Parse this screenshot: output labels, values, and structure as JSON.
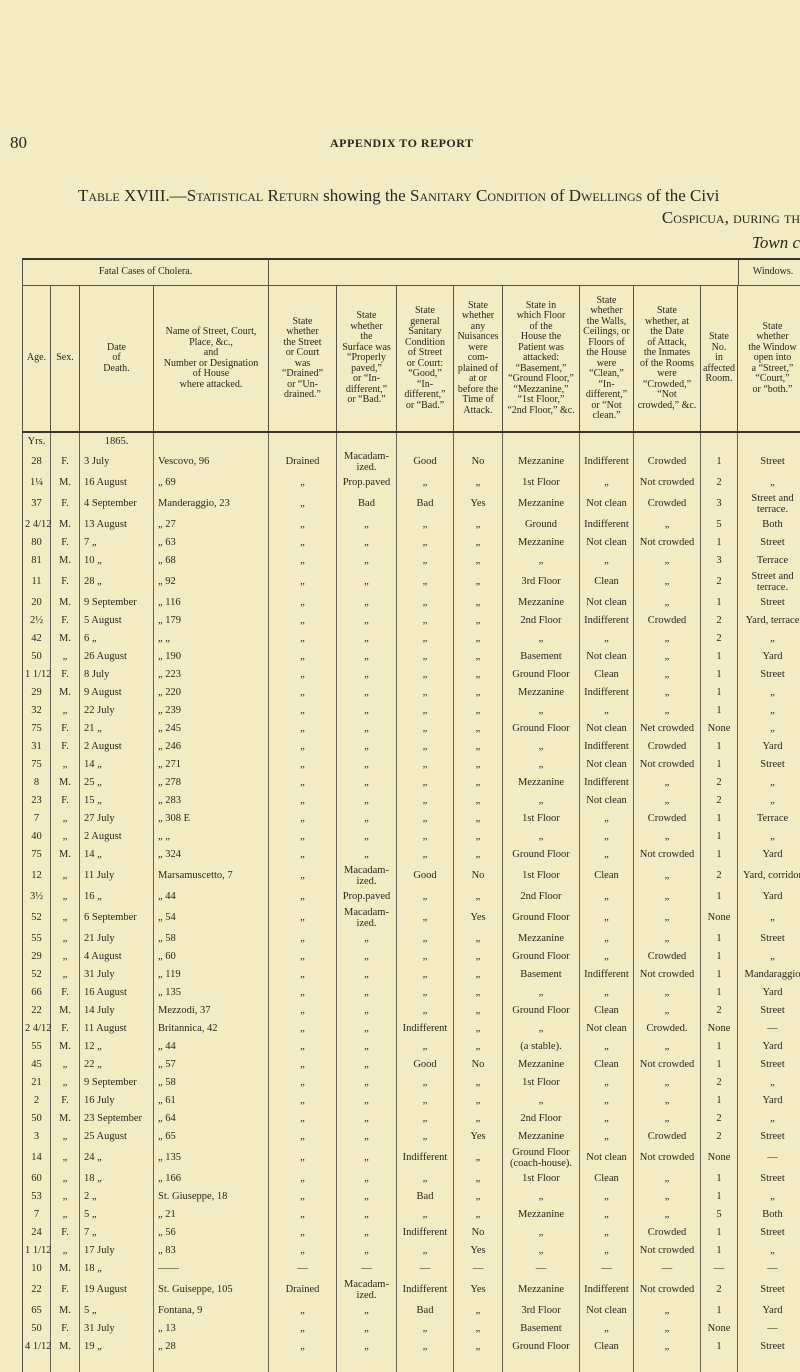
{
  "page_number": "80",
  "running_head": "APPENDIX TO REPORT",
  "title": {
    "label": "Table XVIII.",
    "text_a": "—Statistical Return",
    "text_b": " showing the ",
    "text_c": "Sanitary Condition",
    "text_d": " of ",
    "text_e": "Dwellings",
    "text_f": " of the Civi",
    "line2": "Cospicua, during th",
    "line3": "Town c"
  },
  "table": {
    "group_fatal": "Fatal Cases of Cholera.",
    "group_windows": "Windows.",
    "headers": [
      "Age.",
      "Sex.",
      "Date\nof\nDeath.",
      "Name of Street, Court,\nPlace, &c.,\nand\nNumber or Designation\nof House\nwhere attacked.",
      "State\nwhether\nthe Street\nor Court\nwas\n“Drained”\nor “Un-\ndrained.”",
      "State\nwhether\nthe\nSurface was\n“Properly\npaved,”\nor “In-\ndifferent,”\nor “Bad.”",
      "State\ngeneral\nSanitary\nCondition\nof Street\nor Court:\n“Good,”\n“In-\ndifferent,”\nor “Bad.”",
      "State\nwhether\nany\nNuisances\nwere\ncom-\nplained of\nat or\nbefore the\nTime of\nAttack.",
      "State in\nwhich Floor\nof the\nHouse the\nPatient was\nattacked:\n“Basement,”\n“Ground Floor,”\n“Mezzanine,”\n“1st Floor,”\n“2nd Floor,” &c.",
      "State\nwhether\nthe Walls,\nCeilings, or\nFloors of\nthe House\nwere\n“Clean,”\n“In-\ndifferent,”\nor “Not\nclean.”",
      "State\nwhether, at\nthe Date\nof Attack,\nthe Inmates\nof the Rooms\nwere\n“Crowded,”\n“Not\ncrowded,” &c.",
      "State\nNo.\nin\naffected\nRoom.",
      "State\nwhether\nthe Window\nopen into\na “Street,”\n“Court,”\nor “both.”"
    ],
    "units": {
      "age": "Yrs.",
      "year": "1865."
    },
    "rows": [
      [
        "28",
        "F.",
        "3 July",
        "Vescovo, 96",
        "Drained",
        "Macadam-\nized.",
        "Good",
        "No",
        "Mezzanine",
        "Indifferent",
        "Crowded",
        "1",
        "Street"
      ],
      [
        "1¼",
        "M.",
        "16 August",
        "„  69",
        "„",
        "Prop.paved",
        "„",
        "„",
        "1st Floor",
        "„",
        "Not crowded",
        "2",
        "„"
      ],
      [
        "37",
        "F.",
        "4 September",
        "Manderaggio, 23",
        "„",
        "Bad",
        "Bad",
        "Yes",
        "Mezzanine",
        "Not clean",
        "Crowded",
        "3",
        "Street and\nterrace."
      ],
      [
        "2 4/12",
        "M.",
        "13 August",
        "„  27",
        "„",
        "„",
        "„",
        "„",
        "Ground",
        "Indifferent",
        "„",
        "5",
        "Both"
      ],
      [
        "80",
        "F.",
        "7  „",
        "„  63",
        "„",
        "„",
        "„",
        "„",
        "Mezzanine",
        "Not clean",
        "Not crowded",
        "1",
        "Street"
      ],
      [
        "81",
        "M.",
        "10  „",
        "„  68",
        "„",
        "„",
        "„",
        "„",
        "„",
        "„",
        "„",
        "3",
        "Terrace"
      ],
      [
        "11",
        "F.",
        "28  „",
        "„  92",
        "„",
        "„",
        "„",
        "„",
        "3rd Floor",
        "Clean",
        "„",
        "2",
        "Street and\nterrace."
      ],
      [
        "20",
        "M.",
        "9 September",
        "„  116",
        "„",
        "„",
        "„",
        "„",
        "Mezzanine",
        "Not clean",
        "„",
        "1",
        "Street"
      ],
      [
        "2½",
        "F.",
        "5 August",
        "„  179",
        "„",
        "„",
        "„",
        "„",
        "2nd Floor",
        "Indifferent",
        "Crowded",
        "2",
        "Yard, terrace"
      ],
      [
        "42",
        "M.",
        "6  „",
        "„  „",
        "„",
        "„",
        "„",
        "„",
        "„",
        "„",
        "„",
        "2",
        "„"
      ],
      [
        "50",
        "„",
        "26 August",
        "„  190",
        "„",
        "„",
        "„",
        "„",
        "Basement",
        "Not clean",
        "„",
        "1",
        "Yard"
      ],
      [
        "1 1/12",
        "F.",
        "8 July",
        "„  223",
        "„",
        "„",
        "„",
        "„",
        "Ground Floor",
        "Clean",
        "„",
        "1",
        "Street"
      ],
      [
        "29",
        "M.",
        "9 August",
        "„  220",
        "„",
        "„",
        "„",
        "„",
        "Mezzanine",
        "Indifferent",
        "„",
        "1",
        "„"
      ],
      [
        "32",
        "„",
        "22 July",
        "„  239",
        "„",
        "„",
        "„",
        "„",
        "„",
        "„",
        "„",
        "1",
        "„"
      ],
      [
        "75",
        "F.",
        "21  „",
        "„  245",
        "„",
        "„",
        "„",
        "„",
        "Ground Floor",
        "Not clean",
        "Net crowded",
        "None",
        "„"
      ],
      [
        "31",
        "F.",
        "2 August",
        "„  246",
        "„",
        "„",
        "„",
        "„",
        "„",
        "Indifferent",
        "Crowded",
        "1",
        "Yard"
      ],
      [
        "75",
        "„",
        "14  „",
        "„  271",
        "„",
        "„",
        "„",
        "„",
        "„",
        "Not clean",
        "Not crowded",
        "1",
        "Street"
      ],
      [
        "8",
        "M.",
        "25  „",
        "„  278",
        "„",
        "„",
        "„",
        "„",
        "Mezzanine",
        "Indifferent",
        "„",
        "2",
        "„"
      ],
      [
        "23",
        "F.",
        "15  „",
        "„  283",
        "„",
        "„",
        "„",
        "„",
        "„",
        "Not clean",
        "„",
        "2",
        "„"
      ],
      [
        "7",
        "„",
        "27 July",
        "„  308 E",
        "„",
        "„",
        "„",
        "„",
        "1st Floor",
        "„",
        "Crowded",
        "1",
        "Terrace"
      ],
      [
        "40",
        "„",
        "2 August",
        "„  „",
        "„",
        "„",
        "„",
        "„",
        "„",
        "„",
        "„",
        "1",
        "„"
      ],
      [
        "75",
        "M.",
        "14  „",
        "„  324",
        "„",
        "„",
        "„",
        "„",
        "Ground Floor",
        "„",
        "Not crowded",
        "1",
        "Yard"
      ],
      [
        "12",
        "„",
        "11 July",
        "Marsamuscetto, 7",
        "„",
        "Macadam-\nized.",
        "Good",
        "No",
        "1st Floor",
        "Clean",
        "„",
        "2",
        "Yard, corridor"
      ],
      [
        "3½",
        "„",
        "16  „",
        "„  44",
        "„",
        "Prop.paved",
        "„",
        "„",
        "2nd Floor",
        "„",
        "„",
        "1",
        "Yard"
      ],
      [
        "52",
        "„",
        "6 September",
        "„  54",
        "„",
        "Macadam-\nized.",
        "„",
        "Yes",
        "Ground Floor",
        "„",
        "„",
        "None",
        "„"
      ],
      [
        "55",
        "„",
        "21 July",
        "„  58",
        "„",
        "„",
        "„",
        "„",
        "Mezzanine",
        "„",
        "„",
        "1",
        "Street"
      ],
      [
        "29",
        "„",
        "4 August",
        "„  60",
        "„",
        "„",
        "„",
        "„",
        "Ground Floor",
        "„",
        "Crowded",
        "1",
        "„"
      ],
      [
        "52",
        "„",
        "31 July",
        "„  119",
        "„",
        "„",
        "„",
        "„",
        "Basement",
        "Indifferent",
        "Not crowded",
        "1",
        "Mandaraggio"
      ],
      [
        "66",
        "F.",
        "16 August",
        "„  135",
        "„",
        "„",
        "„",
        "„",
        "„",
        "„",
        "„",
        "1",
        "Yard"
      ],
      [
        "22",
        "M.",
        "14 July",
        "Mezzodi, 37",
        "„",
        "„",
        "„",
        "„",
        "Ground Floor",
        "Clean",
        "„",
        "2",
        "Street"
      ],
      [
        "2 4/12",
        "F.",
        "11 August",
        "Britannica, 42",
        "„",
        "„",
        "Indifferent",
        "„",
        "„",
        "Not clean",
        "Crowded.",
        "None",
        "—"
      ],
      [
        "55",
        "M.",
        "12  „",
        "„  44",
        "„",
        "„",
        "„",
        "„",
        "(a stable).",
        "„",
        "„",
        "1",
        "Yard"
      ],
      [
        "45",
        "„",
        "22  „",
        "„  57",
        "„",
        "„",
        "Good",
        "No",
        "Mezzanine",
        "Clean",
        "Not crowded",
        "1",
        "Street"
      ],
      [
        "21",
        "„",
        "9 September",
        "„  58",
        "„",
        "„",
        "„",
        "„",
        "1st Floor",
        "„",
        "„",
        "2",
        "„"
      ],
      [
        "2",
        "F.",
        "16 July",
        "„  61",
        "„",
        "„",
        "„",
        "„",
        "„",
        "„",
        "„",
        "1",
        "Yard"
      ],
      [
        "50",
        "M.",
        "23 September",
        "„  64",
        "„",
        "„",
        "„",
        "„",
        "2nd Floor",
        "„",
        "„",
        "2",
        "„"
      ],
      [
        "3",
        "„",
        "25 August",
        "„  65",
        "„",
        "„",
        "„",
        "Yes",
        "Mezzanine",
        "„",
        "Crowded",
        "2",
        "Street"
      ],
      [
        "14",
        "„",
        "24  „",
        "„  135",
        "„",
        "„",
        "Indifferent",
        "„",
        "Ground Floor\n(coach-house).",
        "Not clean",
        "Not crowded",
        "None",
        "—"
      ],
      [
        "60",
        "„",
        "18  „",
        "„  166",
        "„",
        "„",
        "„",
        "„",
        "1st Floor",
        "Clean",
        "„",
        "1",
        "Street"
      ],
      [
        "53",
        "„",
        "2  „",
        "St. Giuseppe, 18",
        "„",
        "„",
        "Bad",
        "„",
        "„",
        "„",
        "„",
        "1",
        "„"
      ],
      [
        "7",
        "„",
        "5  „",
        "„  21",
        "„",
        "„",
        "„",
        "„",
        "Mezzanine",
        "„",
        "„",
        "5",
        "Both"
      ],
      [
        "24",
        "F.",
        "7  „",
        "„  56",
        "„",
        "„",
        "Indifferent",
        "No",
        "„",
        "„",
        "Crowded",
        "1",
        "Street"
      ],
      [
        "1 1/12",
        "„",
        "17 July",
        "„  83",
        "„",
        "„",
        "„",
        "Yes",
        "„",
        "„",
        "Not crowded",
        "1",
        "„"
      ],
      [
        "10",
        "M.",
        "18  „",
        "——",
        "—",
        "—",
        "—",
        "—",
        "—",
        "—",
        "—",
        "—",
        "—"
      ],
      [
        "22",
        "F.",
        "19 August",
        "St. Guiseppe, 105",
        "Drained",
        "Macadam-\nized.",
        "Indifferent",
        "Yes",
        "Mezzanine",
        "Indifferent",
        "Not crowded",
        "2",
        "Street"
      ],
      [
        "65",
        "M.",
        "5  „",
        "Fontana, 9",
        "„",
        "„",
        "Bad",
        "„",
        "3rd Floor",
        "Not clean",
        "„",
        "1",
        "Yard"
      ],
      [
        "50",
        "F.",
        "31 July",
        "„  13",
        "„",
        "„",
        "„",
        "„",
        "Basement",
        "„",
        "„",
        "None",
        "—"
      ],
      [
        "4 1/12",
        "M.",
        "19  „",
        "„  28",
        "„",
        "„",
        "„",
        "„",
        "Ground Floor",
        "Clean",
        "„",
        "1",
        "Street"
      ]
    ]
  }
}
